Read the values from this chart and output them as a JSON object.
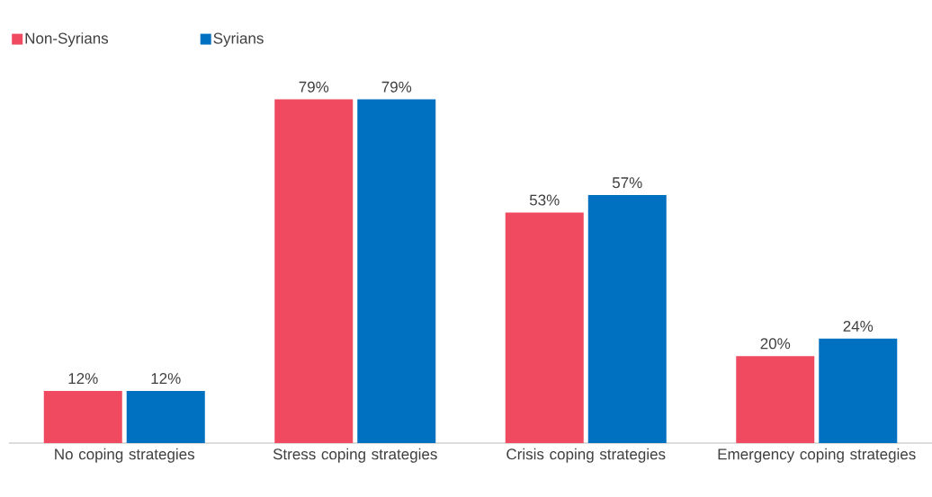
{
  "chart_data": {
    "type": "bar",
    "categories": [
      "No coping strategies",
      "Stress coping strategies",
      "Crisis coping strategies",
      "Emergency coping strategies"
    ],
    "series": [
      {
        "name": "Non-Syrians",
        "color": "#ef4a60",
        "values": [
          12,
          79,
          53,
          20
        ],
        "value_labels": [
          "12%",
          "79%",
          "53%",
          "20%"
        ]
      },
      {
        "name": "Syrians",
        "color": "#0070c0",
        "values": [
          12,
          79,
          57,
          24
        ],
        "value_labels": [
          "12%",
          "79%",
          "57%",
          "24%"
        ]
      }
    ],
    "legend": "top left"
  }
}
